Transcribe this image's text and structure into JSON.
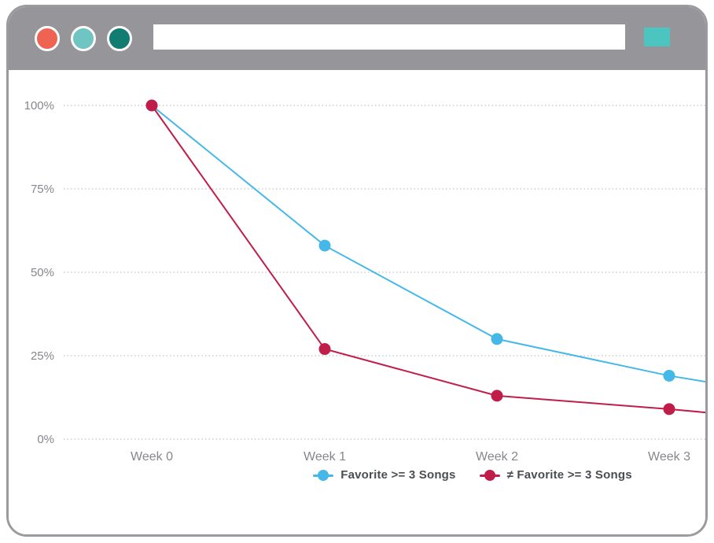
{
  "window": {
    "chrome_color": "#95959a",
    "border_color": "#9b9b9f",
    "traffic_lights": [
      {
        "name": "close",
        "color": "#ee6352"
      },
      {
        "name": "minimize",
        "color": "#6ec5c2"
      },
      {
        "name": "zoom",
        "color": "#117c72"
      }
    ],
    "address_bar": {
      "value": "",
      "placeholder": ""
    },
    "action_button": {
      "color": "#4cc4c0"
    }
  },
  "chart_data": {
    "type": "line",
    "title": "",
    "xlabel": "",
    "ylabel": "",
    "categories": [
      "Week 0",
      "Week 1",
      "Week 2",
      "Week 3"
    ],
    "y_ticks": [
      "100%",
      "75%",
      "50%",
      "25%",
      "0%"
    ],
    "y_tick_values": [
      100,
      75,
      50,
      25,
      0
    ],
    "ylim": [
      0,
      100
    ],
    "grid": "horizontal-dotted",
    "grid_color": "#b3b3b3",
    "axis_label_color": "#85878c",
    "legend_position": "bottom",
    "series": [
      {
        "name": "Favorite >= 3 Songs",
        "color": "#45b8e8",
        "values": [
          100,
          58,
          30,
          19
        ],
        "edge_value": 17.2
      },
      {
        "name": "≠ Favorite >= 3 Songs",
        "color": "#c01d4a",
        "values": [
          100,
          27,
          13,
          9
        ],
        "edge_value": 8
      }
    ]
  }
}
